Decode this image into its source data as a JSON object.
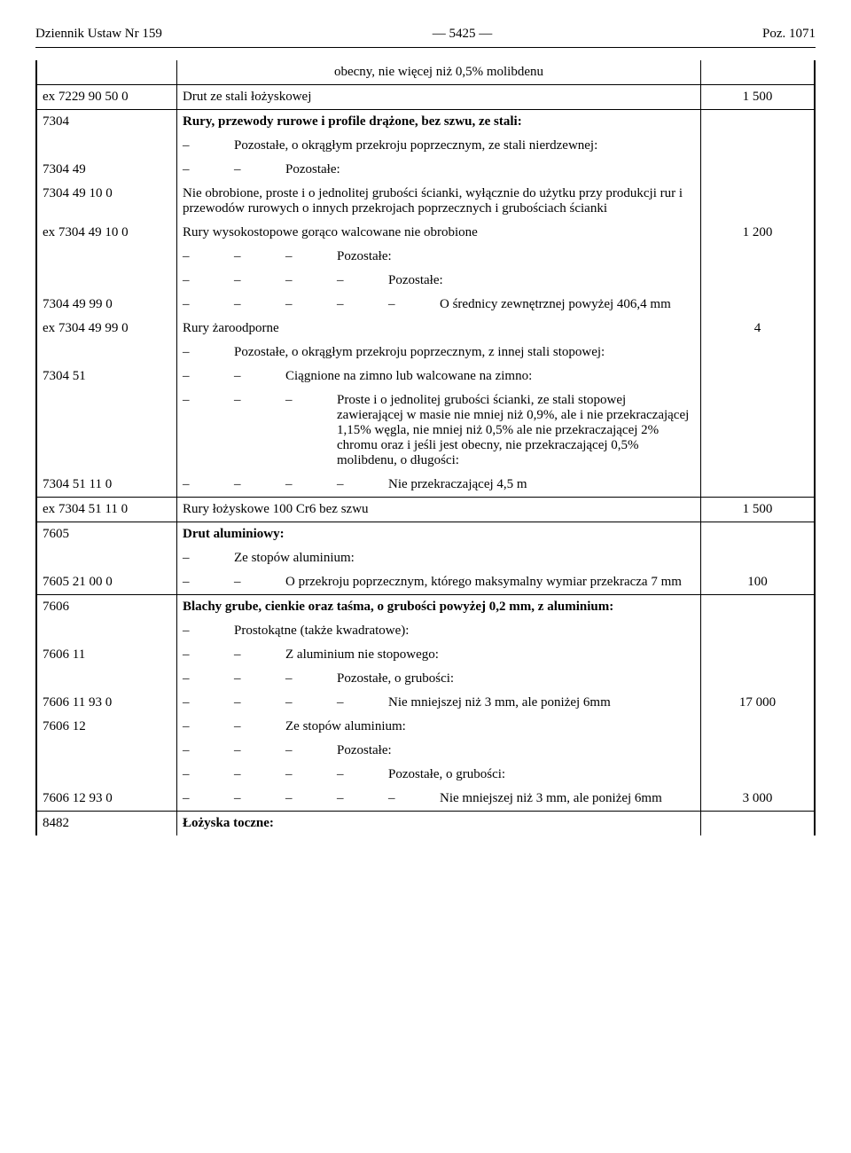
{
  "header": {
    "left": "Dziennik Ustaw Nr 159",
    "center": "—  5425  —",
    "right": "Poz. 1071"
  },
  "dash": "–",
  "rows": [
    {
      "code": "",
      "dashes": 0,
      "text": "obecny, nie więcej niż 0,5% molibdenu",
      "val": "",
      "sep": false,
      "bold": false,
      "center": true
    },
    {
      "code": "ex  7229 90 50 0",
      "dashes": 0,
      "text": "Drut ze stali łożyskowej",
      "val": "1 500",
      "sep": true,
      "bold": false
    },
    {
      "code": "7304",
      "dashes": 0,
      "text": "Rury, przewody rurowe i profile drążone, bez szwu, ze stali:",
      "val": "",
      "sep": true,
      "bold": true
    },
    {
      "code": "",
      "dashes": 1,
      "text": "Pozostałe, o okrągłym przekroju poprzecznym, ze stali nierdzewnej:",
      "val": "",
      "sep": false,
      "bold": false
    },
    {
      "code": "7304 49",
      "dashes": 2,
      "text": "Pozostałe:",
      "val": "",
      "sep": false,
      "bold": false
    },
    {
      "code": "7304 49 10 0",
      "dashes": 0,
      "text": "Nie obrobione, proste i o jednolitej grubości ścianki, wyłącznie do użytku przy produkcji rur i przewodów rurowych o innych przekrojach poprzecznych i grubościach ścianki",
      "val": "",
      "sep": false,
      "bold": false
    },
    {
      "code": "ex  7304 49 10 0",
      "dashes": 0,
      "text": "Rury wysokostopowe gorąco walcowane nie obrobione",
      "val": "1 200",
      "sep": false,
      "bold": false
    },
    {
      "code": "",
      "dashes": 3,
      "text": "Pozostałe:",
      "val": "",
      "sep": false,
      "bold": false
    },
    {
      "code": "",
      "dashes": 4,
      "text": "Pozostałe:",
      "val": "",
      "sep": false,
      "bold": false
    },
    {
      "code": "7304 49 99 0",
      "dashes": 5,
      "text": "O średnicy zewnętrznej powyżej 406,4 mm",
      "val": "",
      "sep": false,
      "bold": false
    },
    {
      "code": "ex  7304 49 99 0",
      "dashes": 0,
      "text": "Rury żaroodporne",
      "val": "4",
      "sep": false,
      "bold": false
    },
    {
      "code": "",
      "dashes": 1,
      "text": "Pozostałe, o okrągłym przekroju poprzecznym, z innej stali stopowej:",
      "val": "",
      "sep": false,
      "bold": false
    },
    {
      "code": "7304 51",
      "dashes": 2,
      "text": "Ciągnione na zimno lub walcowane na zimno:",
      "val": "",
      "sep": false,
      "bold": false
    },
    {
      "code": "",
      "dashes": 3,
      "text": "Proste i o jednolitej grubości ścianki, ze stali stopowej zawierającej w masie nie mniej niż 0,9%, ale i nie przekraczającej 1,15% węgla, nie mniej niż 0,5% ale nie przekraczającej 2% chromu oraz i jeśli jest obecny, nie przekraczającej 0,5% molibdenu, o długości:",
      "val": "",
      "sep": false,
      "bold": false
    },
    {
      "code": "7304 51 11 0",
      "dashes": 4,
      "text": "Nie przekraczającej 4,5 m",
      "val": "",
      "sep": false,
      "bold": false
    },
    {
      "code": "ex  7304 51 11 0",
      "dashes": 0,
      "text": "Rury łożyskowe 100 Cr6 bez szwu",
      "val": "1 500",
      "sep": true,
      "bold": false
    },
    {
      "code": "7605",
      "dashes": 0,
      "text": "Drut aluminiowy:",
      "val": "",
      "sep": true,
      "bold": true
    },
    {
      "code": "",
      "dashes": 1,
      "text": "Ze stopów aluminium:",
      "val": "",
      "sep": false,
      "bold": false
    },
    {
      "code": "7605 21 00 0",
      "dashes": 2,
      "text": "O przekroju poprzecznym, którego maksymalny wymiar przekracza 7 mm",
      "val": "100",
      "sep": false,
      "bold": false
    },
    {
      "code": "7606",
      "dashes": 0,
      "text": "Blachy grube, cienkie oraz taśma, o grubości powyżej 0,2 mm, z aluminium:",
      "val": "",
      "sep": true,
      "bold": true
    },
    {
      "code": "",
      "dashes": 1,
      "text": "Prostokątne (także kwadratowe):",
      "val": "",
      "sep": false,
      "bold": false
    },
    {
      "code": "7606 11",
      "dashes": 2,
      "text": "Z aluminium nie stopowego:",
      "val": "",
      "sep": false,
      "bold": false
    },
    {
      "code": "",
      "dashes": 3,
      "text": "Pozostałe, o grubości:",
      "val": "",
      "sep": false,
      "bold": false
    },
    {
      "code": "7606 11 93 0",
      "dashes": 4,
      "text": "Nie mniejszej niż 3 mm, ale poniżej 6mm",
      "val": "17 000",
      "sep": false,
      "bold": false
    },
    {
      "code": "7606 12",
      "dashes": 2,
      "text": "Ze stopów aluminium:",
      "val": "",
      "sep": false,
      "bold": false
    },
    {
      "code": "",
      "dashes": 3,
      "text": "Pozostałe:",
      "val": "",
      "sep": false,
      "bold": false
    },
    {
      "code": "",
      "dashes": 4,
      "text": "Pozostałe, o grubości:",
      "val": "",
      "sep": false,
      "bold": false
    },
    {
      "code": "7606 12 93 0",
      "dashes": 5,
      "text": "Nie mniejszej niż 3 mm, ale poniżej 6mm",
      "val": "3 000",
      "sep": false,
      "bold": false
    },
    {
      "code": "8482",
      "dashes": 0,
      "text": "Łożyska toczne:",
      "val": "",
      "sep": true,
      "bold": true
    }
  ]
}
